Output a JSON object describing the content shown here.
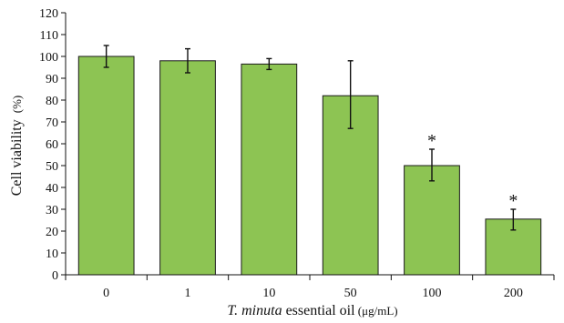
{
  "chart_data": {
    "type": "bar",
    "categories": [
      "0",
      "1",
      "10",
      "50",
      "100",
      "200"
    ],
    "values": [
      100,
      98,
      96.5,
      82,
      50,
      25.5
    ],
    "error_upper": [
      5,
      5.5,
      2.5,
      16,
      7.5,
      4.5
    ],
    "error_lower": [
      5,
      5.5,
      2.5,
      15,
      7,
      5
    ],
    "annotations": [
      "",
      "",
      "",
      "",
      "*",
      "*"
    ],
    "ylabel": "Cell viability",
    "ylabel_unit": "(%)",
    "xlabel_italic": "T. minuta",
    "xlabel_rest": " essential oil",
    "xlabel_unit": " (μg/mL)",
    "ylim": [
      0,
      120
    ],
    "yticks": [
      "0",
      "10",
      "20",
      "30",
      "40",
      "50",
      "60",
      "70",
      "80",
      "90",
      "100",
      "110",
      "120"
    ],
    "bar_color": "#8dc453",
    "bar_edge_color": "#1a1a1a",
    "grid": false,
    "legend": "none"
  }
}
